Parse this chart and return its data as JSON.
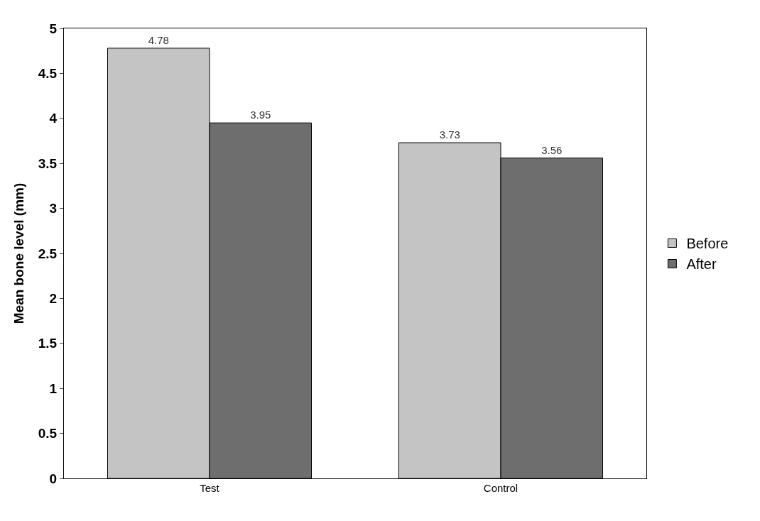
{
  "chart_data": {
    "type": "bar",
    "ylabel": "Mean bone level (mm)",
    "categories": [
      "Test",
      "Control"
    ],
    "series": [
      {
        "name": "Before",
        "color": "#c4c4c4",
        "values": [
          4.78,
          3.73
        ]
      },
      {
        "name": "After",
        "color": "#6e6e6e",
        "values": [
          3.95,
          3.56
        ]
      }
    ],
    "ylim": [
      0,
      5
    ],
    "yticks": [
      0,
      0.5,
      1,
      1.5,
      2,
      2.5,
      3,
      3.5,
      4,
      4.5,
      5
    ],
    "data_labels": true,
    "legend": "right"
  }
}
